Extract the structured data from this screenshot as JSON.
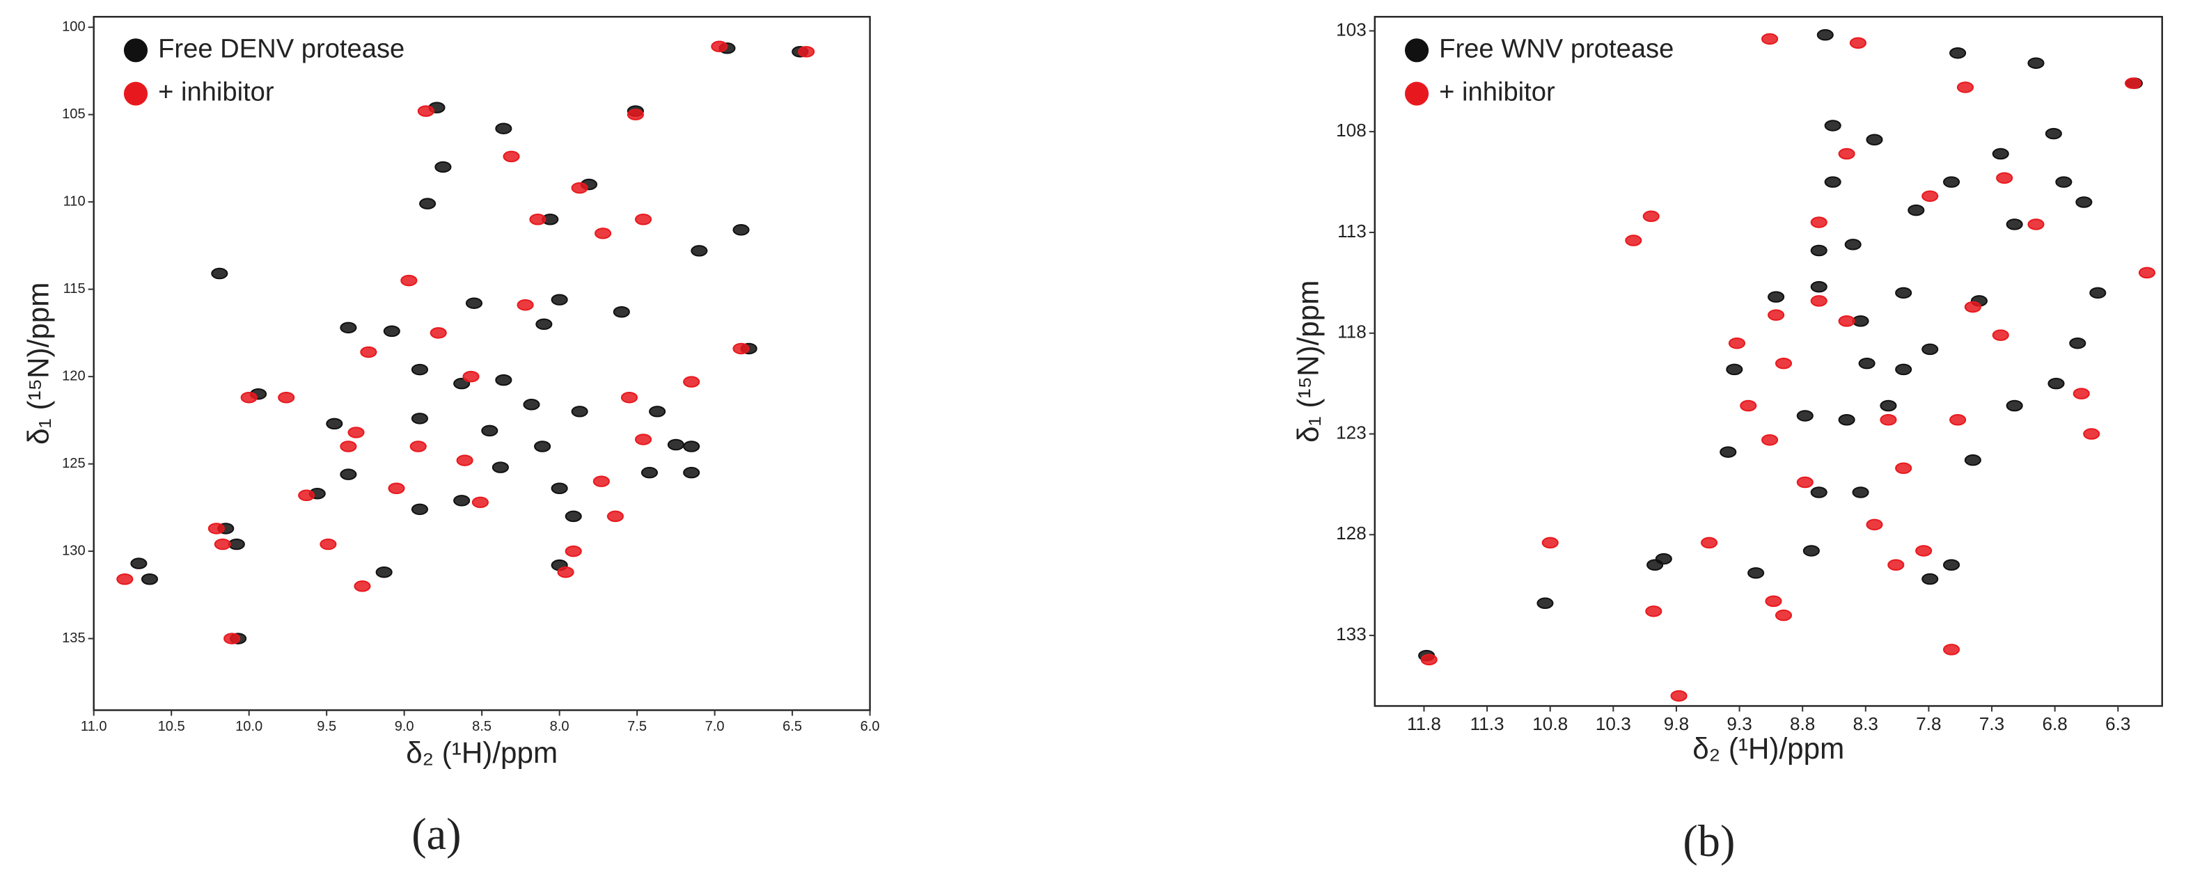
{
  "chart_data": [
    {
      "type": "scatter",
      "panel_label": "(a)",
      "x_label": "δ₂ (¹H)/ppm",
      "y_label": "δ₁ (¹⁵N)/ppm",
      "xlim": [
        11.0,
        6.0
      ],
      "ylim": [
        99.4,
        139.1
      ],
      "xticks": [
        {
          "value": 11,
          "label": "11.0"
        },
        10.5,
        {
          "value": 10,
          "label": "10.0"
        },
        9.5,
        {
          "value": 9,
          "label": "9.0"
        },
        8.5,
        {
          "value": 8,
          "label": "8.0"
        },
        7.5,
        {
          "value": 7,
          "label": "7.0"
        },
        6.5,
        {
          "value": 6,
          "label": "6.0"
        }
      ],
      "yticks": [
        100,
        105,
        110,
        115,
        120,
        125,
        130,
        135
      ],
      "grid": false,
      "legend": "upper-left",
      "series": [
        {
          "name": "Free DENV protease",
          "color": "#111111",
          "x": [
            6.45,
            6.92,
            7.51,
            8.79,
            8.36,
            8.75,
            7.81,
            8.85,
            8.06,
            10.19,
            7.1,
            6.83,
            6.78,
            7.6,
            8.0,
            8.55,
            8.1,
            9.08,
            9.36,
            8.9,
            8.63,
            8.36,
            8.18,
            8.9,
            9.45,
            8.45,
            7.87,
            7.37,
            7.25,
            7.15,
            7.15,
            8.11,
            8.38,
            8.0,
            8.63,
            8.9,
            7.91,
            9.56,
            9.36,
            10.15,
            10.08,
            10.71,
            10.64,
            9.13,
            8.0,
            10.07,
            9.94,
            7.42
          ],
          "values": [
            101.4,
            101.2,
            104.8,
            104.6,
            105.8,
            108.0,
            109.0,
            110.1,
            111.0,
            114.1,
            112.8,
            111.6,
            118.4,
            116.3,
            115.6,
            115.8,
            117.0,
            117.4,
            117.2,
            119.6,
            120.4,
            120.2,
            121.6,
            122.4,
            122.7,
            123.1,
            122.0,
            122.0,
            123.9,
            124.0,
            125.5,
            124.0,
            125.2,
            126.4,
            127.1,
            127.6,
            128.0,
            126.7,
            125.6,
            128.7,
            129.6,
            130.7,
            131.6,
            131.2,
            130.8,
            135.0,
            121.0,
            125.5
          ]
        },
        {
          "name": "+ inhibitor",
          "color": "#e8191e",
          "x": [
            6.41,
            6.97,
            8.86,
            7.51,
            8.31,
            7.87,
            8.14,
            7.72,
            7.46,
            8.97,
            6.83,
            7.15,
            8.22,
            8.78,
            9.23,
            10.0,
            9.76,
            8.57,
            7.55,
            7.46,
            8.91,
            8.61,
            9.36,
            9.05,
            9.63,
            9.31,
            7.73,
            7.64,
            10.21,
            10.17,
            10.8,
            9.27,
            9.49,
            10.11,
            8.51,
            7.91,
            7.96
          ],
          "values": [
            101.4,
            101.1,
            104.8,
            105.0,
            107.4,
            109.2,
            111.0,
            111.8,
            111.0,
            114.5,
            118.4,
            120.3,
            115.9,
            117.5,
            118.6,
            121.2,
            121.2,
            120.0,
            121.2,
            123.6,
            124.0,
            124.8,
            124.0,
            126.4,
            126.8,
            123.2,
            126.0,
            128.0,
            128.7,
            129.6,
            131.6,
            132.0,
            129.6,
            135.0,
            127.2,
            130.0,
            131.2
          ]
        }
      ]
    },
    {
      "type": "scatter",
      "panel_label": "(b)",
      "x_label": "δ₂ (¹H)/ppm",
      "y_label": "δ₁ (¹⁵N)/ppm",
      "xlim": [
        12.19,
        5.95
      ],
      "ylim": [
        102.3,
        136.5
      ],
      "xticks": [
        11.8,
        11.3,
        10.8,
        10.3,
        9.8,
        9.3,
        8.8,
        8.3,
        7.8,
        7.3,
        6.8,
        6.3
      ],
      "yticks": [
        103,
        108,
        113,
        118,
        123,
        128,
        133
      ],
      "grid": false,
      "legend": "upper-left",
      "series": [
        {
          "name": "Free WNV protease",
          "color": "#111111",
          "x": [
            11.78,
            10.84,
            9.97,
            9.9,
            9.17,
            8.73,
            8.34,
            8.67,
            7.79,
            7.62,
            7.45,
            8.78,
            9.39,
            9.34,
            9.01,
            8.67,
            8.34,
            8.0,
            8.29,
            8.0,
            8.12,
            8.45,
            7.79,
            7.4,
            8.67,
            8.4,
            7.9,
            8.56,
            8.23,
            8.56,
            8.62,
            7.57,
            6.95,
            6.17,
            6.81,
            7.23,
            7.62,
            6.73,
            6.57,
            7.12,
            6.46,
            6.62,
            6.79,
            7.12
          ],
          "values": [
            134.0,
            131.4,
            129.5,
            129.2,
            129.9,
            128.8,
            125.9,
            125.9,
            130.2,
            129.5,
            124.3,
            122.1,
            123.9,
            119.8,
            116.2,
            115.7,
            117.4,
            116.0,
            119.5,
            119.8,
            121.6,
            122.3,
            118.8,
            116.4,
            113.9,
            113.6,
            111.9,
            110.5,
            108.4,
            107.7,
            103.2,
            104.1,
            104.6,
            105.6,
            108.1,
            109.1,
            110.5,
            110.5,
            111.5,
            112.6,
            116.0,
            118.5,
            120.5,
            121.6
          ]
        },
        {
          "name": "+ inhibitor",
          "color": "#e8191e",
          "x": [
            11.76,
            10.8,
            9.98,
            9.78,
            9.54,
            9.03,
            8.95,
            9.32,
            10.0,
            10.14,
            9.01,
            8.95,
            8.78,
            8.23,
            8.06,
            7.84,
            7.62,
            8.0,
            7.57,
            7.23,
            7.45,
            8.12,
            8.45,
            8.67,
            9.06,
            8.36,
            7.51,
            7.2,
            8.45,
            7.79,
            6.95,
            6.07,
            6.18,
            6.59,
            6.51,
            8.67,
            9.23,
            9.06
          ],
          "values": [
            134.2,
            128.4,
            131.8,
            136.0,
            128.4,
            131.3,
            132.0,
            118.5,
            112.2,
            113.4,
            117.1,
            119.5,
            125.4,
            127.5,
            129.5,
            128.8,
            133.7,
            124.7,
            122.3,
            118.1,
            116.7,
            122.3,
            117.4,
            116.4,
            103.4,
            103.6,
            105.8,
            110.3,
            109.1,
            111.2,
            112.6,
            115.0,
            105.6,
            121.0,
            123.0,
            112.5,
            121.6,
            123.3
          ]
        }
      ]
    }
  ]
}
